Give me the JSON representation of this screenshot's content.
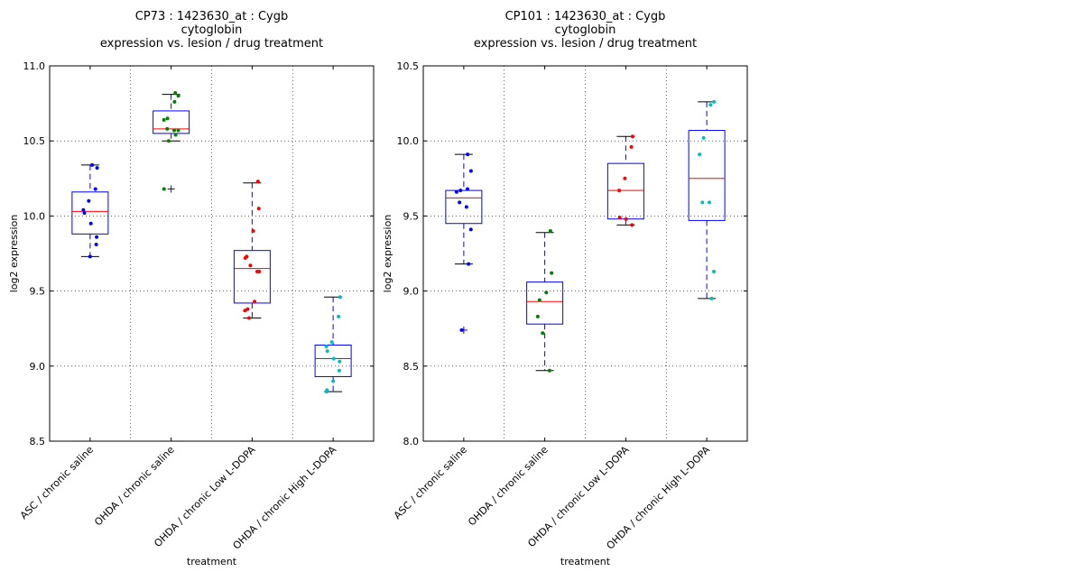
{
  "chart_data": [
    {
      "type": "box",
      "title_lines": [
        "CP73 : 1423630_at : Cygb",
        "cytoglobin",
        "expression vs. lesion / drug treatment"
      ],
      "xlabel": "treatment",
      "ylabel": "log2 expression",
      "ylim": [
        8.5,
        11.0
      ],
      "yticks": [
        "8.5",
        "9.0",
        "9.5",
        "10.0",
        "10.5",
        "11.0"
      ],
      "grid": true,
      "categories": [
        "ASC / chronic saline",
        "OHDA / chronic saline",
        "OHDA / chronic Low L-DOPA",
        "OHDA / chronic High L-DOPA"
      ],
      "boxes": [
        {
          "whisker_low": 9.73,
          "q1": 9.88,
          "median": 10.03,
          "q3": 10.16,
          "whisker_high": 10.34,
          "outliers": []
        },
        {
          "whisker_low": 10.5,
          "q1": 10.55,
          "median": 10.58,
          "q3": 10.7,
          "whisker_high": 10.81,
          "outliers": [
            10.18
          ]
        },
        {
          "whisker_low": 9.32,
          "q1": 9.42,
          "median": 9.65,
          "q3": 9.77,
          "whisker_high": 10.22,
          "outliers": []
        },
        {
          "whisker_low": 8.83,
          "q1": 8.93,
          "median": 9.05,
          "q3": 9.14,
          "whisker_high": 9.46,
          "outliers": []
        }
      ],
      "points": [
        [
          10.34,
          10.32,
          10.18,
          10.1,
          10.04,
          10.02,
          9.95,
          9.86,
          9.81,
          9.73
        ],
        [
          10.82,
          10.8,
          10.76,
          10.65,
          10.64,
          10.58,
          10.57,
          10.57,
          10.54,
          10.5,
          10.18
        ],
        [
          10.23,
          10.05,
          9.9,
          9.73,
          9.72,
          9.67,
          9.63,
          9.63,
          9.43,
          9.38,
          9.37,
          9.32
        ],
        [
          9.46,
          9.33,
          9.16,
          9.13,
          9.1,
          9.05,
          9.03,
          8.97,
          8.9,
          8.84,
          8.83
        ]
      ],
      "point_colors": [
        "#0000ff",
        "#008000",
        "#ff0000",
        "#00bfbf"
      ]
    },
    {
      "type": "box",
      "title_lines": [
        "CP101 : 1423630_at : Cygb",
        "cytoglobin",
        "expression vs. lesion / drug treatment"
      ],
      "xlabel": "treatment",
      "ylabel": "log2 expression",
      "ylim": [
        8.0,
        10.5
      ],
      "yticks": [
        "8.0",
        "8.5",
        "9.0",
        "9.5",
        "10.0",
        "10.5"
      ],
      "grid": true,
      "categories": [
        "ASC / chronic saline",
        "OHDA / chronic saline",
        "OHDA / chronic Low L-DOPA",
        "OHDA / chronic High L-DOPA"
      ],
      "boxes": [
        {
          "whisker_low": 9.18,
          "q1": 9.45,
          "median": 9.62,
          "q3": 9.67,
          "whisker_high": 9.91,
          "outliers": [
            8.74
          ]
        },
        {
          "whisker_low": 8.47,
          "q1": 8.78,
          "median": 8.93,
          "q3": 9.06,
          "whisker_high": 9.39,
          "outliers": []
        },
        {
          "whisker_low": 9.44,
          "q1": 9.48,
          "median": 9.67,
          "q3": 9.85,
          "whisker_high": 10.03,
          "outliers": []
        },
        {
          "whisker_low": 8.95,
          "q1": 9.47,
          "median": 9.75,
          "q3": 10.07,
          "whisker_high": 10.26,
          "outliers": []
        }
      ],
      "points": [
        [
          9.91,
          9.8,
          9.68,
          9.67,
          9.66,
          9.59,
          9.56,
          9.41,
          9.18,
          8.74
        ],
        [
          9.4,
          9.12,
          8.99,
          8.94,
          8.83,
          8.72,
          8.47
        ],
        [
          10.03,
          9.96,
          9.75,
          9.67,
          9.49,
          9.48,
          9.44
        ],
        [
          10.26,
          10.24,
          10.02,
          9.91,
          9.59,
          9.59,
          9.13,
          8.95
        ]
      ],
      "point_colors": [
        "#0000ff",
        "#008000",
        "#ff0000",
        "#00bfbf"
      ]
    }
  ]
}
